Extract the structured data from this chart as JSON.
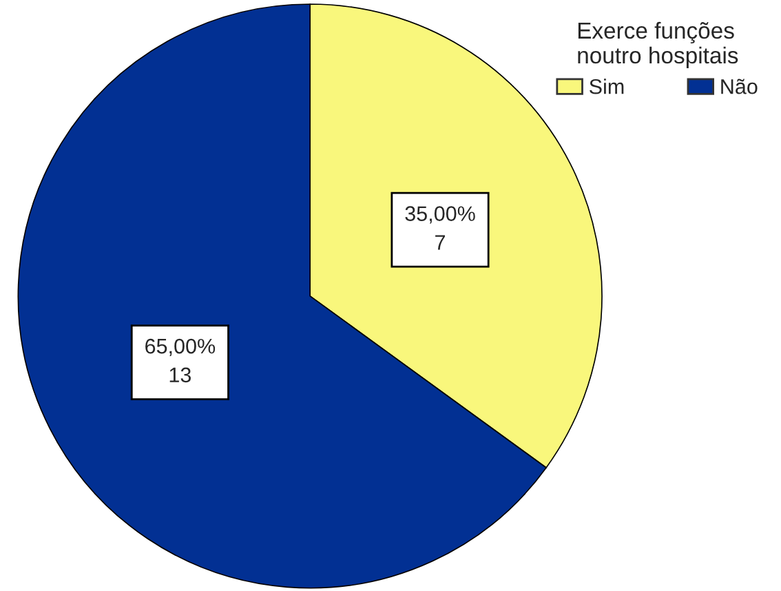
{
  "chart_data": {
    "type": "pie",
    "categories": [
      "Sim",
      "Não"
    ],
    "values": [
      7,
      13
    ],
    "colors": [
      "#f9f77c",
      "#023093"
    ],
    "value_labels": [
      "35,00%\n7",
      "65,00%\n13"
    ],
    "legend_title": "Exerce funções\nnoutro hospitais",
    "legend": "top right"
  }
}
